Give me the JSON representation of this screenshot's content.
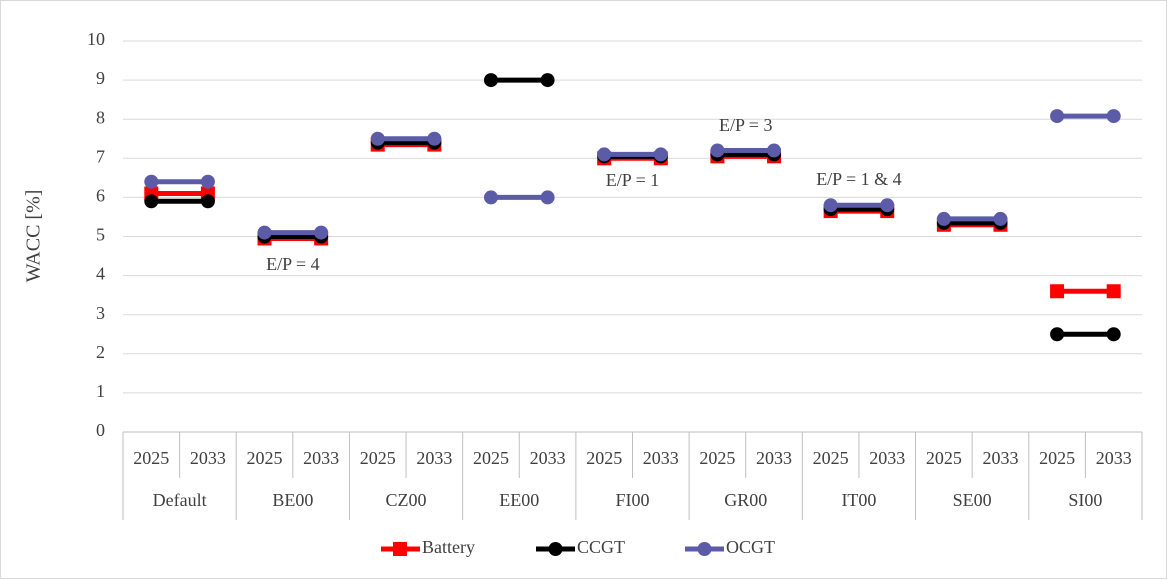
{
  "chart_data": {
    "type": "line",
    "ylabel": "WACC [%]",
    "categories": [
      "2025",
      "2033",
      "2025",
      "2033",
      "2025",
      "2033",
      "2025",
      "2033",
      "2025",
      "2033",
      "2025",
      "2033",
      "2025",
      "2033",
      "2025",
      "2033",
      "2025",
      "2033"
    ],
    "groups": [
      "Default",
      "BE00",
      "CZ00",
      "EE00",
      "FI00",
      "GR00",
      "IT00",
      "SE00",
      "SI00"
    ],
    "series": [
      {
        "name": "Battery",
        "color": "#ff0000",
        "values": [
          6.1,
          6.1,
          4.95,
          4.95,
          7.35,
          7.35,
          null,
          null,
          7.0,
          7.0,
          7.05,
          7.05,
          5.65,
          5.65,
          5.3,
          5.3,
          3.6,
          3.6
        ]
      },
      {
        "name": "CCGT",
        "color": "#000000",
        "values": [
          5.9,
          5.9,
          5.0,
          5.0,
          7.4,
          7.4,
          9.0,
          9.0,
          7.05,
          7.05,
          7.1,
          7.1,
          5.7,
          5.7,
          5.35,
          5.35,
          2.5,
          2.5
        ]
      },
      {
        "name": "OCGT",
        "color": "#5b5ba8",
        "values": [
          6.4,
          6.4,
          5.1,
          5.1,
          7.5,
          7.5,
          6.0,
          6.0,
          7.1,
          7.1,
          7.2,
          7.2,
          5.8,
          5.8,
          5.45,
          5.45,
          8.08,
          8.08
        ]
      }
    ],
    "annotations": [
      "E/P = 4",
      "E/P = 1",
      "E/P = 3",
      "E/P = 1 & 4"
    ],
    "ylim": [
      0,
      10
    ],
    "yticks": [
      0,
      1,
      2,
      3,
      4,
      5,
      6,
      7,
      8,
      9,
      10
    ],
    "grid": true,
    "legend": "bottom"
  }
}
